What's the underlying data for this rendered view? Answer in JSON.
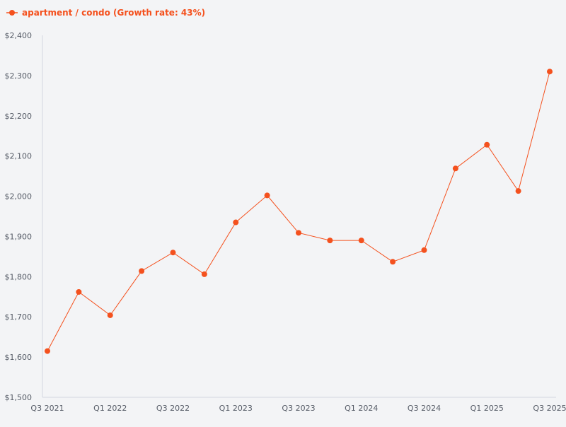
{
  "chart_data": {
    "type": "line",
    "legend": {
      "position": "top-left"
    },
    "series": [
      {
        "name": "apartment / condo (Growth rate: 43%)",
        "color": "#f4511e",
        "values": [
          1615,
          1762,
          1704,
          1814,
          1860,
          1806,
          1935,
          2002,
          1909,
          1890,
          1890,
          1837,
          1866,
          2069,
          2128,
          2013,
          2310
        ]
      }
    ],
    "x_tick_labels": [
      "Q3 2021",
      "Q1 2022",
      "Q3 2022",
      "Q1 2023",
      "Q3 2023",
      "Q1 2024",
      "Q3 2024",
      "Q1 2025",
      "Q3 2025"
    ],
    "x_tick_every": 2,
    "y_ticks": [
      1500,
      1600,
      1700,
      1800,
      1900,
      2000,
      2100,
      2200,
      2300,
      2400
    ],
    "y_tick_labels": [
      "$1,500",
      "$1,600",
      "$1,700",
      "$1,800",
      "$1,900",
      "$2,000",
      "$2,100",
      "$2,200",
      "$2,300",
      "$2,400"
    ],
    "ylim": [
      1500,
      2400
    ],
    "grid": false,
    "colors": {
      "background": "#f3f4f6",
      "axis": "#d3d6e0",
      "tick_text": "#555b66"
    }
  }
}
